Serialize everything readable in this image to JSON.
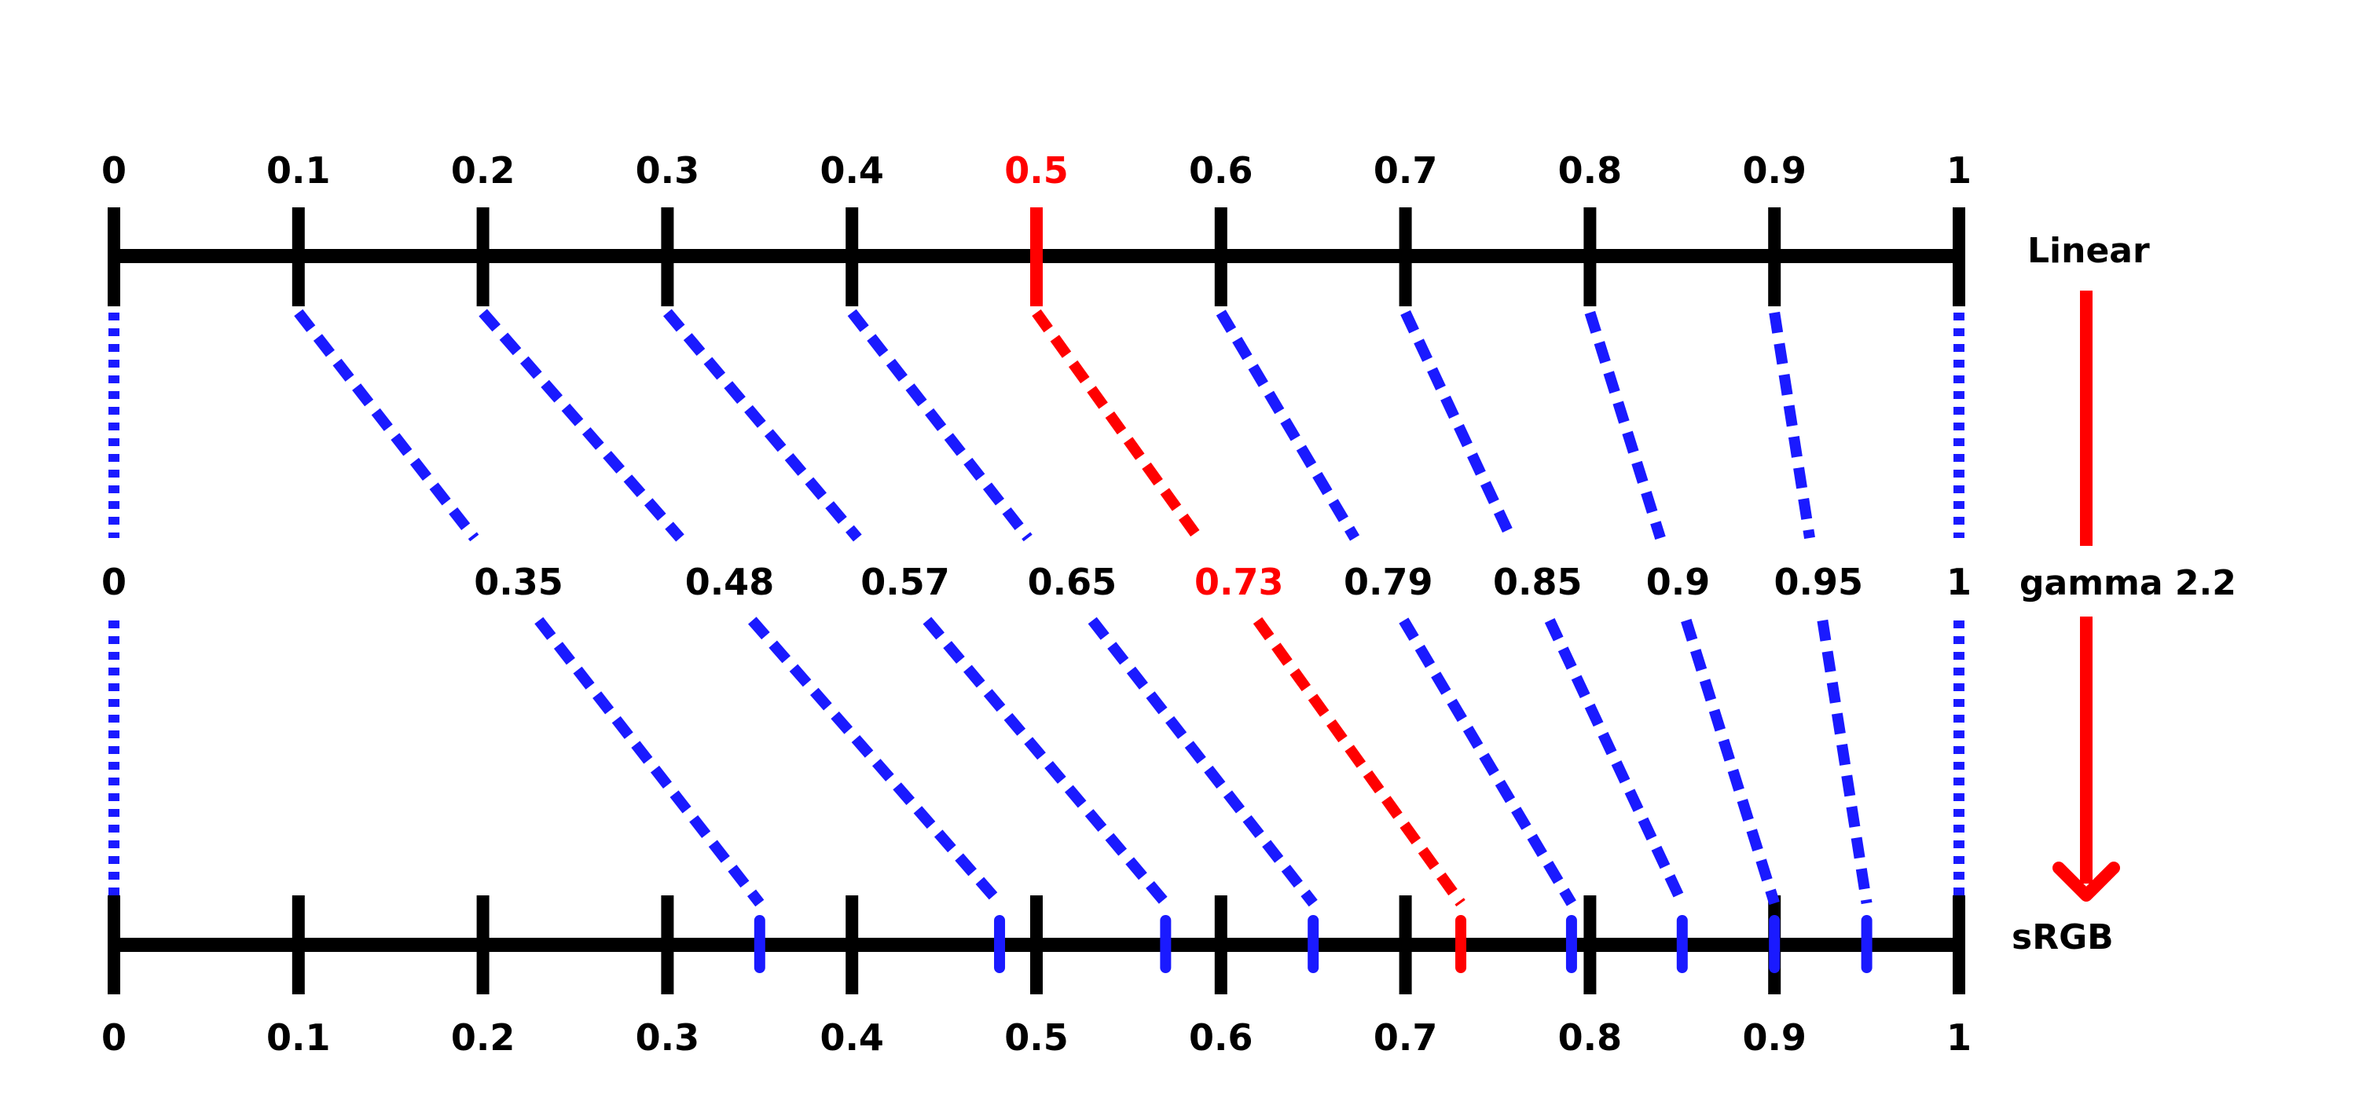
{
  "linear_scale": {
    "name": "Linear",
    "tick_labels": [
      "0",
      "0.1",
      "0.2",
      "0.3",
      "0.4",
      "0.5",
      "0.6",
      "0.7",
      "0.8",
      "0.9",
      "1"
    ],
    "highlight_label": "0.5"
  },
  "gamma_row": {
    "name": "gamma 2.2",
    "labels": [
      {
        "text": "0",
        "value": 0
      },
      {
        "text": "0.35",
        "value": 0.35
      },
      {
        "text": "0.48",
        "value": 0.48
      },
      {
        "text": "0.57",
        "value": 0.57
      },
      {
        "text": "0.65",
        "value": 0.65
      },
      {
        "text": "0.73",
        "value": 0.73
      },
      {
        "text": "0.79",
        "value": 0.79
      },
      {
        "text": "0.85",
        "value": 0.85
      },
      {
        "text": "0.9",
        "value": 0.9
      },
      {
        "text": "0.95",
        "value": 0.95
      },
      {
        "text": "1",
        "value": 1
      }
    ],
    "highlight_label": "0.73"
  },
  "srgb_scale": {
    "name": "sRGB",
    "tick_labels": [
      "0",
      "0.1",
      "0.2",
      "0.3",
      "0.4",
      "0.5",
      "0.6",
      "0.7",
      "0.8",
      "0.9",
      "1"
    ]
  },
  "mappings": [
    {
      "from": 0,
      "to": 0
    },
    {
      "from": 0.1,
      "to": 0.35
    },
    {
      "from": 0.2,
      "to": 0.48
    },
    {
      "from": 0.3,
      "to": 0.57
    },
    {
      "from": 0.4,
      "to": 0.65
    },
    {
      "from": 0.5,
      "to": 0.73,
      "highlight": true
    },
    {
      "from": 0.6,
      "to": 0.79
    },
    {
      "from": 0.7,
      "to": 0.85
    },
    {
      "from": 0.8,
      "to": 0.9
    },
    {
      "from": 0.9,
      "to": 0.95
    },
    {
      "from": 1,
      "to": 1
    }
  ],
  "colors": {
    "axis": "#000000",
    "text": "#000000",
    "mapping": "#1a1aff",
    "highlight": "#ff0000"
  }
}
